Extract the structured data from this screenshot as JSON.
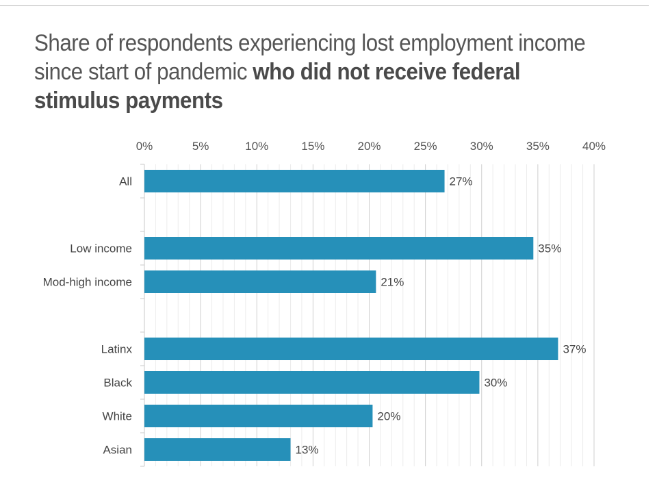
{
  "title_regular": "Share of respondents experiencing lost employment income since start of pandemic ",
  "title_bold": "who did not receive federal stimulus payments",
  "chart_data": {
    "type": "bar",
    "orientation": "horizontal",
    "categories": [
      "All",
      "",
      "Low income",
      "Mod-high income",
      "",
      "Latinx",
      "Black",
      "White",
      "Asian"
    ],
    "values": [
      26.7,
      null,
      34.6,
      20.6,
      null,
      36.8,
      29.8,
      20.3,
      13.0
    ],
    "data_labels": [
      "27%",
      "",
      "35%",
      "21%",
      "",
      "37%",
      "30%",
      "20%",
      "13%"
    ],
    "xlim": [
      0,
      40
    ],
    "xticks": [
      0,
      5,
      10,
      15,
      20,
      25,
      30,
      35,
      40
    ],
    "xtick_labels": [
      "0%",
      "5%",
      "10%",
      "15%",
      "20%",
      "25%",
      "30%",
      "35%",
      "40%"
    ],
    "axis_position": "top",
    "grid": true,
    "bar_color": "#2690b9"
  }
}
